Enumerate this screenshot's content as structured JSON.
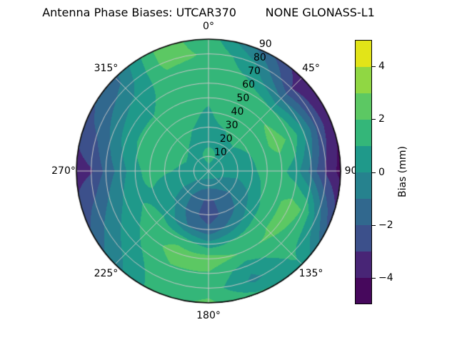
{
  "header": {
    "title_line": "Antenna Phase Biases: UTCAR370        NONE GLONASS-L1"
  },
  "chart_data": {
    "type": "heatmap",
    "projection": "polar",
    "title": "Antenna Phase Biases: UTCAR370        NONE GLONASS-L1",
    "value_units": "mm",
    "azimuth_deg": [
      0,
      22.5,
      45,
      67.5,
      90,
      112.5,
      135,
      157.5,
      180,
      202.5,
      225,
      247.5,
      270,
      292.5,
      315,
      337.5
    ],
    "radius_deg": [
      0,
      10,
      20,
      30,
      40,
      50,
      60,
      70,
      80,
      90
    ],
    "bias_mm": [
      [
        0.8,
        0.8,
        0.8,
        0.8,
        0.8,
        0.8,
        0.8,
        0.8,
        0.8,
        0.8,
        0.8,
        0.8,
        0.8,
        0.8,
        0.8,
        0.8
      ],
      [
        1.2,
        1.0,
        0.8,
        0.6,
        0.4,
        0.0,
        -0.4,
        -0.7,
        -0.8,
        -0.6,
        -0.2,
        0.3,
        0.6,
        0.8,
        0.9,
        1.0
      ],
      [
        0.9,
        0.9,
        0.9,
        0.7,
        0.5,
        -0.3,
        -1.0,
        -1.7,
        -2.2,
        -1.7,
        -0.5,
        0.3,
        0.9,
        1.1,
        1.0,
        0.9
      ],
      [
        0.8,
        1.0,
        1.2,
        1.0,
        0.8,
        0.2,
        -0.6,
        -1.6,
        -2.6,
        -1.6,
        -0.2,
        0.6,
        1.1,
        1.3,
        1.2,
        1.0
      ],
      [
        0.9,
        1.5,
        1.8,
        1.7,
        1.5,
        1.2,
        0.5,
        -0.6,
        -1.7,
        -0.9,
        0.7,
        0.9,
        1.3,
        1.5,
        1.4,
        1.2
      ],
      [
        1.1,
        1.8,
        1.9,
        2.4,
        1.3,
        1.8,
        1.9,
        1.2,
        0.5,
        1.6,
        1.6,
        0.9,
        0.8,
        1.2,
        1.1,
        1.3
      ],
      [
        1.5,
        1.7,
        1.0,
        1.8,
        0.3,
        2.4,
        2.1,
        1.9,
        2.6,
        2.5,
        1.3,
        0.3,
        -0.5,
        0.5,
        0.8,
        1.4
      ],
      [
        1.8,
        0.9,
        -1.1,
        0.2,
        -1.4,
        1.9,
        1.7,
        0.4,
        1.9,
        1.9,
        0.8,
        -0.5,
        -1.7,
        -0.7,
        0.2,
        1.7
      ],
      [
        1.9,
        0.2,
        -3.0,
        -2.3,
        -3.2,
        -0.5,
        1.2,
        -0.3,
        1.6,
        1.7,
        0.2,
        -1.3,
        -3.1,
        -1.7,
        -0.7,
        2.3
      ],
      [
        1.6,
        -1.2,
        -3.7,
        -3.9,
        -4.4,
        -2.6,
        0.8,
        1.2,
        2.2,
        1.6,
        -0.4,
        -2.3,
        -3.5,
        -2.4,
        -1.3,
        2.4
      ]
    ],
    "levels": [
      -5,
      -4,
      -3,
      -2,
      -1,
      0,
      1,
      2,
      3,
      4,
      5
    ],
    "band_colors": [
      "#46085c",
      "#482576",
      "#3c508b",
      "#31688e",
      "#26828e",
      "#1f998a",
      "#34b679",
      "#5cc863",
      "#90d743",
      "#e2e418"
    ],
    "theta_ticks": [
      {
        "label": "0°",
        "angle_deg": 0
      },
      {
        "label": "45°",
        "angle_deg": 45
      },
      {
        "label": "90°",
        "angle_deg": 90
      },
      {
        "label": "135°",
        "angle_deg": 135
      },
      {
        "label": "180°",
        "angle_deg": 180
      },
      {
        "label": "225°",
        "angle_deg": 225
      },
      {
        "label": "270°",
        "angle_deg": 270
      },
      {
        "label": "315°",
        "angle_deg": 315
      }
    ],
    "r_ticks": [
      "10",
      "20",
      "30",
      "40",
      "50",
      "60",
      "70",
      "80",
      "90"
    ],
    "r_label_angle_deg": 22.5,
    "grid": true,
    "grid_color": "#c6c6c6",
    "outline_color": "#000000",
    "colorbar": {
      "label": "Bias (mm)",
      "range": [
        -5,
        5
      ],
      "ticks": [
        {
          "label": "4",
          "value": 4
        },
        {
          "label": "2",
          "value": 2
        },
        {
          "label": "0",
          "value": 0
        },
        {
          "label": "−2",
          "value": -2
        },
        {
          "label": "−4",
          "value": -4
        }
      ]
    }
  }
}
